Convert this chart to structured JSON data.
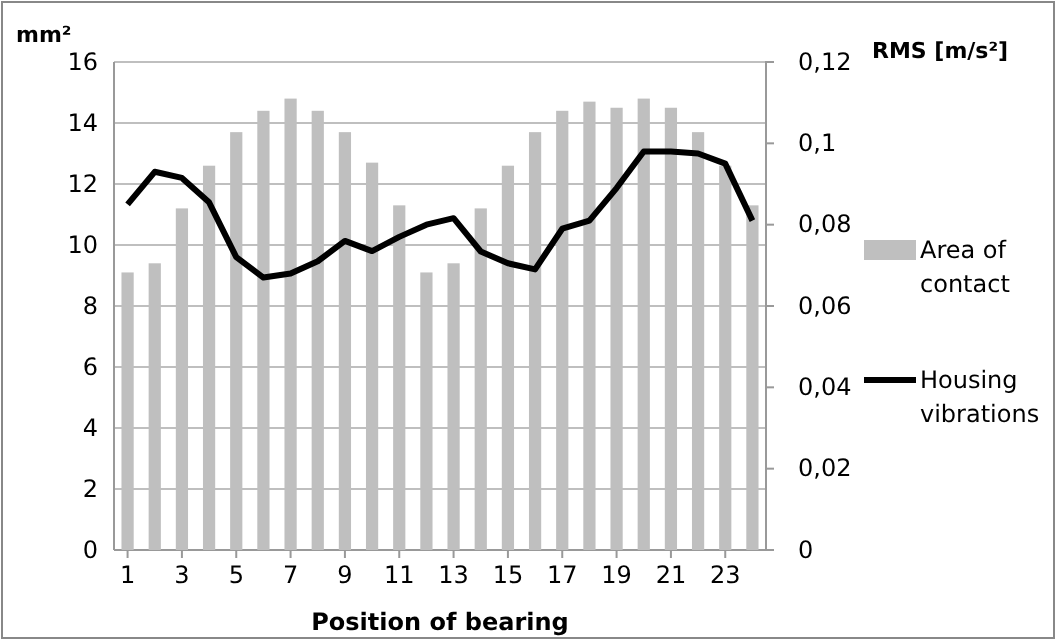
{
  "chart_data": {
    "type": "bar",
    "xlabel": "Position of bearing",
    "ylabel": "mm²",
    "y2label": "RMS [m/s²]",
    "x": [
      1,
      2,
      3,
      4,
      5,
      6,
      7,
      8,
      9,
      10,
      11,
      12,
      13,
      14,
      15,
      16,
      17,
      18,
      19,
      20,
      21,
      22,
      23,
      24
    ],
    "xlim": [
      0.5,
      24.5
    ],
    "xticks": [
      1,
      3,
      5,
      7,
      9,
      11,
      13,
      15,
      17,
      19,
      21,
      23
    ],
    "series": [
      {
        "name": "Area of contact",
        "color": "#bfbfbf",
        "values": [
          9.1,
          9.4,
          11.2,
          12.6,
          13.7,
          14.4,
          14.8,
          14.4,
          13.7,
          12.7,
          11.3,
          9.1,
          9.4,
          11.2,
          12.6,
          13.7,
          14.4,
          14.7,
          14.5,
          14.8,
          14.5,
          13.7,
          12.6,
          11.3
        ]
      },
      {
        "name": "Housing vibrations",
        "type": "line",
        "axis": "y2",
        "color": "#000000",
        "values": [
          0.085,
          0.093,
          0.0915,
          0.0855,
          0.072,
          0.067,
          0.068,
          0.071,
          0.076,
          0.0735,
          0.077,
          0.08,
          0.0816,
          0.0734,
          0.0705,
          0.069,
          0.079,
          0.081,
          0.089,
          0.098,
          0.098,
          0.0975,
          0.095,
          0.081
        ]
      }
    ],
    "ylim": [
      0,
      16
    ],
    "yticks": [
      0,
      2,
      4,
      6,
      8,
      10,
      12,
      14,
      16
    ],
    "y2lim": [
      0,
      0.12
    ],
    "y2ticks": [
      {
        "value": 0,
        "label": "0"
      },
      {
        "value": 0.02,
        "label": "0,02"
      },
      {
        "value": 0.04,
        "label": "0,04"
      },
      {
        "value": 0.06,
        "label": "0,06"
      },
      {
        "value": 0.08,
        "label": "0,08"
      },
      {
        "value": 0.1,
        "label": "0,1"
      },
      {
        "value": 0.12,
        "label": "0,12"
      }
    ],
    "grid": "y",
    "legend": "right",
    "marker": "none",
    "line_style": "solid"
  }
}
